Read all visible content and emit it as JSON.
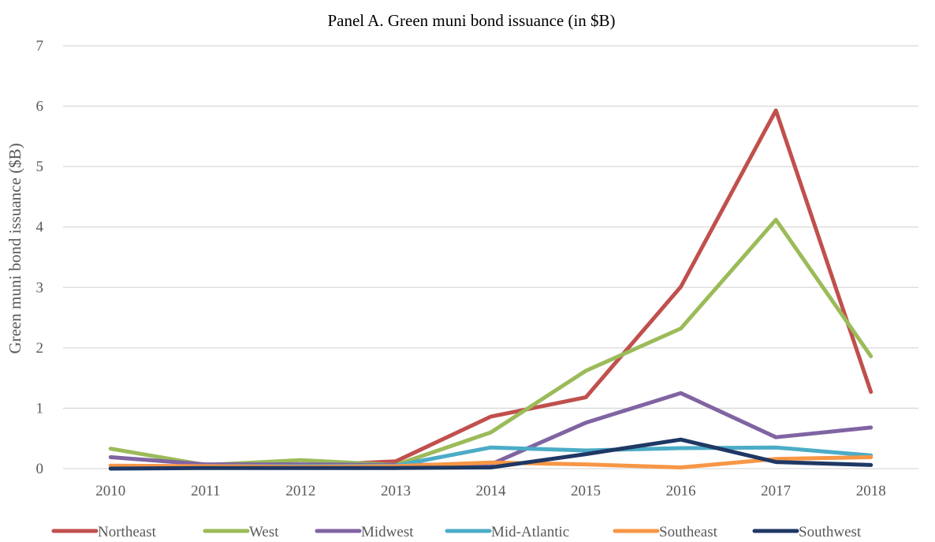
{
  "chart_data": {
    "type": "line",
    "title": "Panel A. Green muni bond issuance (in $B)",
    "xlabel": "",
    "ylabel": "Green muni bond issuance ($B)",
    "ylim": [
      0,
      7
    ],
    "yticks": [
      "0",
      "1",
      "2",
      "3",
      "4",
      "5",
      "6",
      "7"
    ],
    "categories": [
      "2010",
      "2011",
      "2012",
      "2013",
      "2014",
      "2015",
      "2016",
      "2017",
      "2018"
    ],
    "grid": true,
    "legend_position": "bottom",
    "series": [
      {
        "name": "Northeast",
        "color": "#c0504d",
        "values": [
          0.02,
          0.03,
          0.05,
          0.12,
          0.86,
          1.18,
          3.01,
          5.93,
          1.27
        ]
      },
      {
        "name": "West",
        "color": "#9bbb59",
        "values": [
          0.33,
          0.06,
          0.14,
          0.06,
          0.6,
          1.62,
          2.32,
          4.12,
          1.86
        ]
      },
      {
        "name": "Midwest",
        "color": "#8064a2",
        "values": [
          0.19,
          0.07,
          0.07,
          0.06,
          0.07,
          0.76,
          1.25,
          0.52,
          0.68
        ]
      },
      {
        "name": "Mid-Atlantic",
        "color": "#4bacc6",
        "values": [
          0.03,
          0.04,
          0.04,
          0.05,
          0.35,
          0.3,
          0.34,
          0.35,
          0.22
        ]
      },
      {
        "name": "Southeast",
        "color": "#f79646",
        "values": [
          0.05,
          0.04,
          0.03,
          0.04,
          0.1,
          0.07,
          0.02,
          0.16,
          0.19
        ]
      },
      {
        "name": "Southwest",
        "color": "#1f3864",
        "values": [
          0.0,
          0.01,
          0.01,
          0.01,
          0.02,
          0.24,
          0.48,
          0.11,
          0.06
        ]
      }
    ]
  }
}
